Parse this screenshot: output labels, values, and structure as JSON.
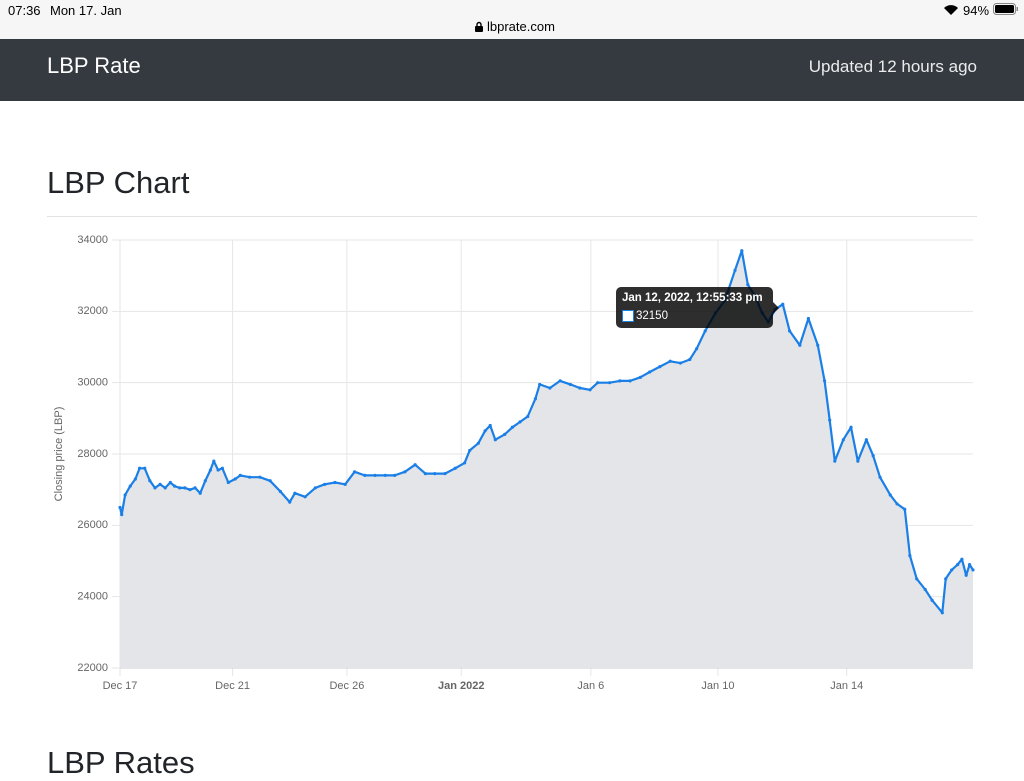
{
  "status_bar": {
    "time": "07:36",
    "date": "Mon 17. Jan",
    "url": "lbprate.com",
    "battery": "94%"
  },
  "navbar": {
    "brand": "LBP Rate",
    "updated": "Updated 12 hours ago"
  },
  "sections": [
    "LBP Chart",
    "LBP Rates"
  ],
  "chart_data": {
    "type": "line",
    "y_label": "Closing price (LBP)",
    "color": "#1a7fe6",
    "fill_color": "#e4e5e8",
    "grid": true,
    "xlim": [
      0,
      100
    ],
    "xticks": [
      {
        "value": 0,
        "label": "Dec 17"
      },
      {
        "value": 13.2,
        "label": "Dec 21"
      },
      {
        "value": 26.6,
        "label": "Dec 26"
      },
      {
        "value": 40.0,
        "label": "Jan 2022"
      },
      {
        "value": 55.2,
        "label": "Jan 6"
      },
      {
        "value": 70.1,
        "label": "Jan 10"
      },
      {
        "value": 85.2,
        "label": "Jan 14"
      }
    ],
    "ylim": [
      22000,
      34000
    ],
    "yticks": [
      22000,
      24000,
      26000,
      28000,
      30000,
      32000,
      34000
    ],
    "x": [
      0,
      0.2,
      0.6,
      1.2,
      1.8,
      2.3,
      2.9,
      3.5,
      4.1,
      4.7,
      5.3,
      5.9,
      6.4,
      7.0,
      7.6,
      8.2,
      8.8,
      9.4,
      10.0,
      10.6,
      11.0,
      11.5,
      12.0,
      12.7,
      13.5,
      14.1,
      15.2,
      16.4,
      17.6,
      18.8,
      19.9,
      20.5,
      21.7,
      22.9,
      24.0,
      25.2,
      26.4,
      27.5,
      28.7,
      29.9,
      31.1,
      32.2,
      33.4,
      34.6,
      35.8,
      36.9,
      38.1,
      39.3,
      40.4,
      41.0,
      42.0,
      42.8,
      43.4,
      44.0,
      45.1,
      46.0,
      46.9,
      47.8,
      48.7,
      49.2,
      50.4,
      51.6,
      52.8,
      53.9,
      55.1,
      56.0,
      57.4,
      58.6,
      59.8,
      61.0,
      62.1,
      63.3,
      64.5,
      65.7,
      66.8,
      67.6,
      68.6,
      69.8,
      70.9,
      72.1,
      72.9,
      73.6,
      74.4,
      75.3,
      76.0,
      76.8,
      77.7,
      78.5,
      79.7,
      80.7,
      81.8,
      82.6,
      83.2,
      83.8,
      84.8,
      85.7,
      86.5,
      87.5,
      88.3,
      89.1,
      90.3,
      91.1,
      92.0,
      92.6,
      93.4,
      94.4,
      95.2,
      96.4,
      96.8,
      97.5,
      98.2,
      98.7,
      99.2,
      99.6,
      100
    ],
    "values": [
      26500,
      26300,
      26850,
      27100,
      27300,
      27600,
      27600,
      27250,
      27050,
      27150,
      27050,
      27200,
      27100,
      27050,
      27050,
      27000,
      27050,
      26900,
      27250,
      27550,
      27800,
      27550,
      27600,
      27200,
      27300,
      27400,
      27350,
      27350,
      27250,
      26950,
      26650,
      26900,
      26800,
      27050,
      27150,
      27200,
      27150,
      27500,
      27400,
      27400,
      27400,
      27400,
      27500,
      27700,
      27450,
      27450,
      27450,
      27600,
      27750,
      28100,
      28300,
      28650,
      28800,
      28400,
      28550,
      28750,
      28900,
      29050,
      29550,
      29950,
      29850,
      30050,
      29950,
      29850,
      29800,
      30000,
      30000,
      30050,
      30050,
      30150,
      30300,
      30450,
      30600,
      30550,
      30650,
      30950,
      31450,
      31950,
      32300,
      33150,
      33700,
      32750,
      32450,
      31950,
      31700,
      32050,
      32200,
      31450,
      31050,
      31800,
      31050,
      30050,
      28950,
      27800,
      28400,
      28750,
      27800,
      28400,
      27950,
      27350,
      26850,
      26600,
      26450,
      25150,
      24500,
      24200,
      23900,
      23550,
      24500,
      24750,
      24900,
      25050,
      24600,
      24900,
      24750
    ],
    "tooltip": {
      "title": "Jan 12, 2022, 12:55:33 pm",
      "value": "32150"
    }
  }
}
